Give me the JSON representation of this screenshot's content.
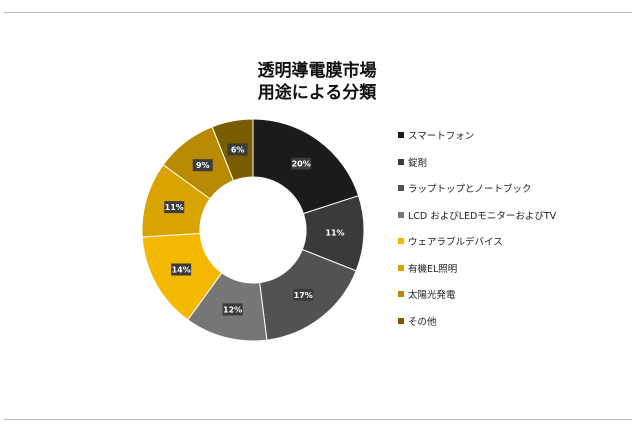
{
  "chart_data": {
    "type": "pie",
    "title_lines": [
      "透明導電膜市場",
      "用途による分類"
    ],
    "series": [
      {
        "name": "スマートフォン",
        "label": "20%",
        "value": 20,
        "color": "#1c1a1a"
      },
      {
        "name": "錠剤",
        "label": "11%",
        "value": 11,
        "color": "#3a3a3a"
      },
      {
        "name": "ラップトップとノートブック",
        "label": "17%",
        "value": 17,
        "color": "#525252"
      },
      {
        "name": "LCD およびLEDモニターおよびTV",
        "label": "12%",
        "value": 12,
        "color": "#767676"
      },
      {
        "name": "ウェアラブルデバイス",
        "label": "14%",
        "value": 14,
        "color": "#f5b800"
      },
      {
        "name": "有機EL照明",
        "label": "11%",
        "value": 11,
        "color": "#d9a400"
      },
      {
        "name": "太陽光発電",
        "label": "9%",
        "value": 9,
        "color": "#b88a00"
      },
      {
        "name": "その他",
        "label": "6%",
        "value": 6,
        "color": "#7a5c00"
      }
    ],
    "legend_position": "right"
  }
}
